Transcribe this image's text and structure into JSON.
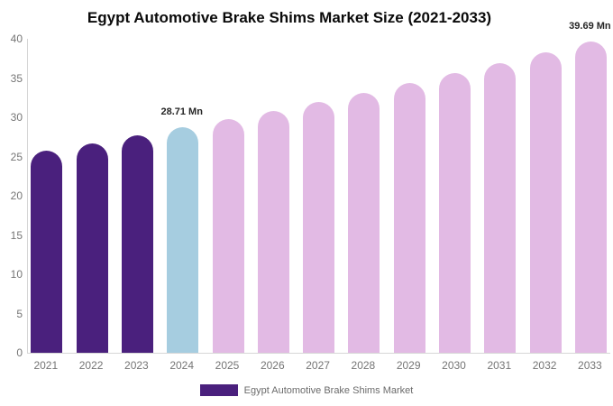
{
  "title": "Egypt Automotive Brake Shims Market Size (2021-2033)",
  "chart_data": {
    "type": "bar",
    "title": "Egypt Automotive Brake Shims Market Size (2021-2033)",
    "xlabel": "",
    "ylabel": "",
    "categories": [
      "2021",
      "2022",
      "2023",
      "2024",
      "2025",
      "2026",
      "2027",
      "2028",
      "2029",
      "2030",
      "2031",
      "2032",
      "2033"
    ],
    "values": [
      25.77,
      26.72,
      27.7,
      28.71,
      29.76,
      30.85,
      31.98,
      33.15,
      34.36,
      35.62,
      36.93,
      38.28,
      39.69
    ],
    "unit": "Mn",
    "ylim": [
      0,
      40
    ],
    "yticks": [
      0,
      5,
      10,
      15,
      20,
      25,
      30,
      35,
      40
    ],
    "grid": false,
    "legend_position": "bottom",
    "series_name": "Egypt Automotive Brake Shims Market",
    "point_colors": [
      "#4a207d",
      "#4a207d",
      "#4a207d",
      "#a6cde0",
      "#e2bae4",
      "#e2bae4",
      "#e2bae4",
      "#e2bae4",
      "#e2bae4",
      "#e2bae4",
      "#e2bae4",
      "#e2bae4",
      "#e2bae4"
    ],
    "color_meaning": {
      "historical": "#4a207d",
      "current_highlight": "#a6cde0",
      "forecast": "#e2bae4"
    },
    "annotations": [
      {
        "category": "2024",
        "text": "28.71 Mn"
      },
      {
        "category": "2033",
        "text": "39.69 Mn"
      }
    ]
  },
  "legend": {
    "label": "Egypt Automotive Brake Shims Market",
    "swatch_color": "#4a207d"
  },
  "colors": {
    "axis_line": "#d6d6d6",
    "tick_text": "#757575",
    "annotation_text": "#262626",
    "background": "#ffffff"
  }
}
